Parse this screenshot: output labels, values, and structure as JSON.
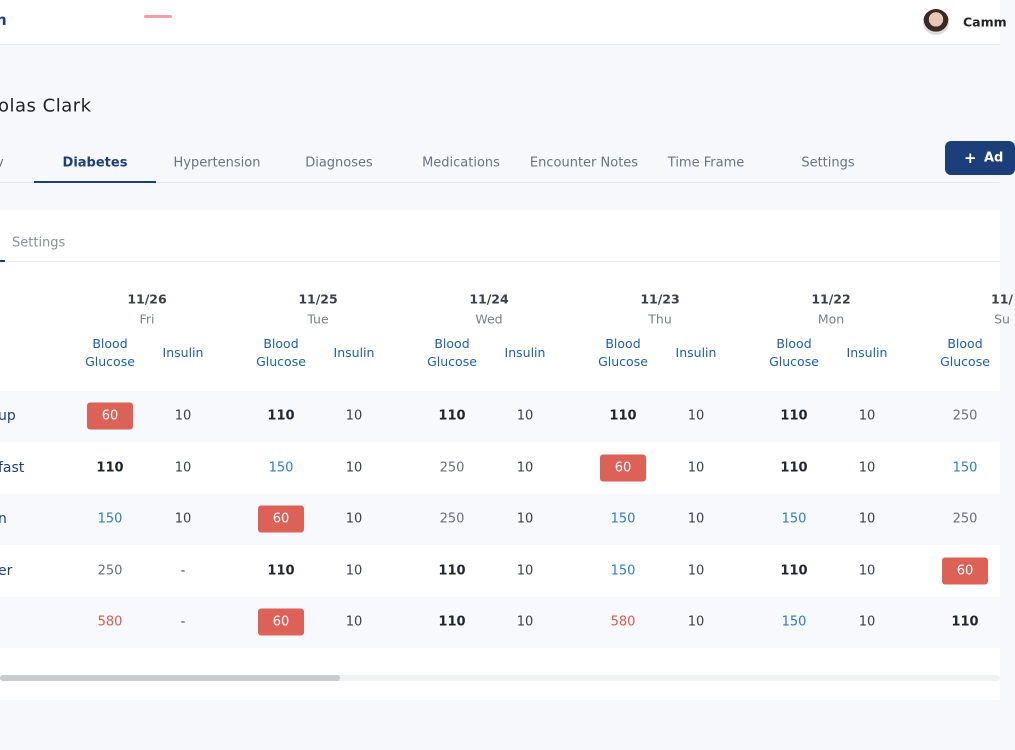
{
  "header": {
    "logo": "n",
    "user_name": "Camm"
  },
  "patient_name": "olas Clark",
  "tabs": {
    "items": [
      "v",
      "Diabetes",
      "Hypertension",
      "Diagnoses",
      "Medications",
      "Encounter Notes",
      "Time Frame",
      "Settings"
    ],
    "active": 1
  },
  "add_button": "Ad",
  "subtabs": [
    "Settings"
  ],
  "table": {
    "columns": [
      {
        "date": "11/26",
        "day": "Fri"
      },
      {
        "date": "11/25",
        "day": "Tue"
      },
      {
        "date": "11/24",
        "day": "Wed"
      },
      {
        "date": "11/23",
        "day": "Thu"
      },
      {
        "date": "11/22",
        "day": "Mon"
      },
      {
        "date": "11/",
        "day": "Su"
      }
    ],
    "subheaders": [
      "Blood Glucose",
      "Insulin"
    ],
    "rows": [
      {
        "label": "up",
        "glucose": [
          {
            "value": "60",
            "tone": "low"
          },
          {
            "value": "110",
            "tone": "normal"
          },
          {
            "value": "110",
            "tone": "normal"
          },
          {
            "value": "110",
            "tone": "normal"
          },
          {
            "value": "110",
            "tone": "normal"
          },
          {
            "value": "250",
            "tone": "neutral"
          }
        ],
        "insulin": [
          "10",
          "10",
          "10",
          "10",
          "10"
        ]
      },
      {
        "label": "fast",
        "glucose": [
          {
            "value": "110",
            "tone": "normal"
          },
          {
            "value": "150",
            "tone": "elevated"
          },
          {
            "value": "250",
            "tone": "neutral"
          },
          {
            "value": "60",
            "tone": "low"
          },
          {
            "value": "110",
            "tone": "normal"
          },
          {
            "value": "150",
            "tone": "elevated"
          }
        ],
        "insulin": [
          "10",
          "10",
          "10",
          "10",
          "10"
        ]
      },
      {
        "label": "n",
        "glucose": [
          {
            "value": "150",
            "tone": "elevated"
          },
          {
            "value": "60",
            "tone": "low"
          },
          {
            "value": "250",
            "tone": "neutral"
          },
          {
            "value": "150",
            "tone": "elevated"
          },
          {
            "value": "150",
            "tone": "elevated"
          },
          {
            "value": "250",
            "tone": "neutral"
          }
        ],
        "insulin": [
          "10",
          "10",
          "10",
          "10",
          "10"
        ]
      },
      {
        "label": "er",
        "glucose": [
          {
            "value": "250",
            "tone": "neutral"
          },
          {
            "value": "110",
            "tone": "normal"
          },
          {
            "value": "110",
            "tone": "normal"
          },
          {
            "value": "150",
            "tone": "elevated"
          },
          {
            "value": "110",
            "tone": "normal"
          },
          {
            "value": "60",
            "tone": "low"
          }
        ],
        "insulin": [
          "-",
          "10",
          "10",
          "10",
          "10"
        ]
      },
      {
        "label": null,
        "glucose": [
          {
            "value": "580",
            "tone": "high"
          },
          {
            "value": "60",
            "tone": "low"
          },
          {
            "value": "110",
            "tone": "normal"
          },
          {
            "value": "580",
            "tone": "high"
          },
          {
            "value": "150",
            "tone": "elevated"
          },
          {
            "value": "110",
            "tone": "normal"
          }
        ],
        "insulin": [
          "-",
          "10",
          "10",
          "10",
          "10"
        ]
      }
    ]
  }
}
